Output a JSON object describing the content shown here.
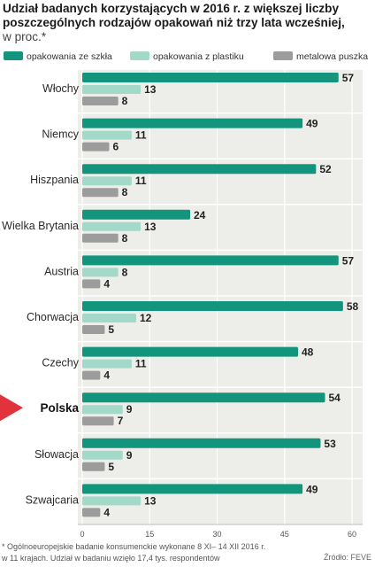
{
  "title": "Udział badanych korzystających w 2016 r. z większej liczby poszczególnych rodzajów opakowań niż trzy lata wcześniej,",
  "unit": "w proc.*",
  "footnote_line1": "* Ogólnoeuropejskie badanie konsumenckie wykonane 8 XI– 14 XII 2016 r.",
  "footnote_line2": "w 11 krajach. Udział w badaniu wzięło 17,4 tys. respondentów",
  "source": "Źródło: FEVE",
  "colors": {
    "glass": "#13957d",
    "plastic": "#a3d9c9",
    "metal": "#9c9c9c",
    "panel": "#ededea",
    "highlight_marker": "#e0333c"
  },
  "chart_data": {
    "type": "bar",
    "orientation": "horizontal",
    "categories": [
      "Włochy",
      "Niemcy",
      "Hiszpania",
      "Wielka Brytania",
      "Austria",
      "Chorwacja",
      "Czechy",
      "Polska",
      "Słowacja",
      "Szwajcaria"
    ],
    "highlighted_category": "Polska",
    "series": [
      {
        "name": "opakowania ze szkła",
        "values": [
          57,
          49,
          52,
          24,
          57,
          58,
          48,
          54,
          53,
          49
        ]
      },
      {
        "name": "opakowania z plastiku",
        "values": [
          13,
          11,
          11,
          13,
          8,
          12,
          11,
          9,
          9,
          13
        ]
      },
      {
        "name": "metalowa puszka",
        "values": [
          8,
          6,
          8,
          8,
          4,
          5,
          4,
          7,
          5,
          4
        ]
      }
    ],
    "xlim": [
      0,
      60
    ],
    "xticks": [
      0,
      15,
      30,
      45,
      60
    ],
    "grid": true,
    "legend_position": "top"
  }
}
